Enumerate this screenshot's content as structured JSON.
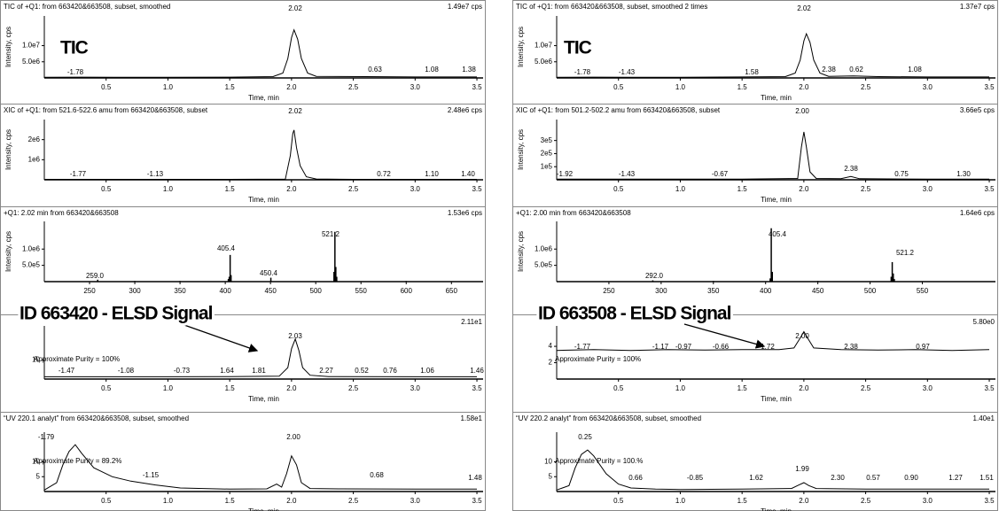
{
  "chart_data": [
    {
      "type": "line",
      "title": "TIC of +Q1: from 663420&663508, subset, smoothed",
      "max_label": "1.49e7 cps",
      "ylabel": "Intensity, cps",
      "xlabel": "Time, min",
      "callout": "TIC",
      "color": "#000000",
      "annotations": [
        "2.02",
        "-1.78",
        "0.63",
        "1.08",
        "1.38"
      ],
      "x": [
        0,
        0.3,
        0.6,
        1,
        1.5,
        1.85,
        1.93,
        1.97,
        2.0,
        2.02,
        2.05,
        2.08,
        2.13,
        2.2,
        2.6,
        3,
        3.5
      ],
      "values": [
        200000,
        250000,
        200000,
        200000,
        250000,
        400000,
        1500000,
        6000000,
        12500000,
        14900000,
        12000000,
        6000000,
        1500000,
        500000,
        400000,
        300000,
        300000
      ],
      "xlim": [
        0,
        3.55
      ],
      "ylim": [
        0,
        19200000
      ],
      "xticks": [
        0.5,
        {
          "value": 1,
          "label": "1.0"
        },
        1.5,
        {
          "value": 2,
          "label": "2.0"
        },
        2.5,
        {
          "value": 3,
          "label": "3.0"
        },
        3.5
      ],
      "yticks": [
        {
          "value": 5000000,
          "label": "5.0e6"
        },
        {
          "value": 10000000,
          "label": "1.0e7"
        }
      ]
    },
    {
      "type": "line",
      "title": "XIC of +Q1: from 521.6-522.6 amu from 663420&663508, subset",
      "max_label": "2.48e6 cps",
      "ylabel": "Intensity, cps",
      "xlabel": "Time, min",
      "color": "#000000",
      "annotations": [
        "2.02",
        "-1.77",
        "-1.13",
        "0.72",
        "1.10",
        "1.40"
      ],
      "x": [
        0,
        0.5,
        1,
        1.5,
        1.95,
        1.99,
        2.01,
        2.02,
        2.04,
        2.07,
        2.12,
        2.2,
        2.5,
        3,
        3.5
      ],
      "values": [
        20000,
        20000,
        20000,
        20000,
        30000,
        1200000,
        2300000,
        2480000,
        1600000,
        700000,
        150000,
        40000,
        20000,
        20000,
        20000
      ],
      "xlim": [
        0,
        3.55
      ],
      "ylim": [
        0,
        3000000
      ],
      "xticks": [
        0.5,
        {
          "value": 1,
          "label": "1.0"
        },
        1.5,
        {
          "value": 2,
          "label": "2.0"
        },
        2.5,
        {
          "value": 3,
          "label": "3.0"
        },
        3.5
      ],
      "yticks": [
        {
          "value": 1000000,
          "label": "1e6"
        },
        {
          "value": 2000000,
          "label": "2e6"
        }
      ]
    },
    {
      "type": "bar",
      "title": "+Q1: 2.02 min from 663420&663508",
      "max_label": "1.53e6 cps",
      "ylabel": "Intensity, cps",
      "color": "#000000",
      "annotations": [
        "405.4",
        "521.2",
        "259.0",
        "450.4"
      ],
      "x": [
        259,
        300,
        350,
        403.4,
        404.4,
        405.4,
        406.4,
        450.4,
        520.2,
        521.2,
        522.2,
        523.2,
        600
      ],
      "values": [
        60000,
        20000,
        20000,
        80000,
        150000,
        820000,
        200000,
        120000,
        300000,
        1530000,
        450000,
        150000,
        20000
      ],
      "xlim": [
        200,
        685
      ],
      "ylim": [
        0,
        1850000
      ],
      "xticks": [
        250,
        300,
        350,
        400,
        450,
        500,
        550,
        600,
        650
      ],
      "yticks": [
        {
          "value": 500000,
          "label": "5.0e5"
        },
        {
          "value": 1000000,
          "label": "1.0e6"
        }
      ]
    },
    {
      "type": "line",
      "max_label": "2.11e1",
      "xlabel": "Time, min",
      "callout": "ID 663420 - ELSD Signal",
      "note": "Approximate Purity = 100%",
      "color": "#000000",
      "annotations": [
        "2.03",
        "-1.47",
        "-1.08",
        "-0.73",
        "1.64",
        "1.81",
        "2.27",
        "0.52",
        "0.76",
        "1.06",
        "1.46"
      ],
      "x": [
        0,
        0.5,
        1,
        1.5,
        1.9,
        1.97,
        2.0,
        2.03,
        2.06,
        2.09,
        2.15,
        2.3,
        3,
        3.5
      ],
      "values": [
        1.2,
        1.2,
        1.2,
        1.3,
        1.5,
        6,
        16,
        21.1,
        15,
        6,
        2,
        1.3,
        1.2,
        1.2
      ],
      "xlim": [
        0,
        3.55
      ],
      "ylim": [
        0,
        28
      ],
      "xticks": [
        0.5,
        {
          "value": 1,
          "label": "1.0"
        },
        1.5,
        {
          "value": 2,
          "label": "2.0"
        },
        2.5,
        {
          "value": 3,
          "label": "3.0"
        },
        3.5
      ],
      "yticks": [
        10
      ]
    },
    {
      "type": "line",
      "title": "“UV 220.1 analyt” from 663420&663508, subset, smoothed",
      "max_label": "1.58e1",
      "xlabel": "Time, min",
      "note": "Approximate Purity = 89.2%",
      "color": "#000000",
      "annotations": [
        "-1.79",
        "-1.15",
        "2.00",
        "0.68",
        "1.48"
      ],
      "x": [
        0,
        0.1,
        0.15,
        0.2,
        0.25,
        0.3,
        0.4,
        0.55,
        0.7,
        0.9,
        1.1,
        1.5,
        1.8,
        1.88,
        1.92,
        1.96,
        2.0,
        2.04,
        2.08,
        2.15,
        2.4,
        3,
        3.5
      ],
      "values": [
        0.5,
        3,
        9,
        13.5,
        15.8,
        13,
        8,
        5,
        3.5,
        2.2,
        1.2,
        0.8,
        0.9,
        2.5,
        1.5,
        6,
        12,
        9,
        3,
        1,
        0.9,
        0.8,
        0.8
      ],
      "xlim": [
        0,
        3.55
      ],
      "ylim": [
        0,
        20
      ],
      "xticks": [
        0.5,
        {
          "value": 1,
          "label": "1.0"
        },
        1.5,
        {
          "value": 2,
          "label": "2.0"
        },
        2.5,
        {
          "value": 3,
          "label": "3.0"
        },
        3.5
      ],
      "yticks": [
        5,
        10
      ]
    },
    {
      "type": "line",
      "title": "TIC of +Q1: from 663420&663508, subset, smoothed 2 times",
      "max_label": "1.37e7 cps",
      "ylabel": "Intensity, cps",
      "xlabel": "Time, min",
      "callout": "TIC",
      "color": "#000000",
      "annotations": [
        "2.02",
        "-1.78",
        "-1.43",
        "1.58",
        "2.38",
        "0.62",
        "1.08"
      ],
      "x": [
        0,
        0.3,
        0.6,
        1,
        1.5,
        1.85,
        1.93,
        1.97,
        2.0,
        2.02,
        2.05,
        2.08,
        2.13,
        2.2,
        2.4,
        2.6,
        3,
        3.5
      ],
      "values": [
        200000,
        250000,
        200000,
        200000,
        300000,
        400000,
        1500000,
        5500000,
        11500000,
        13700000,
        11000000,
        5500000,
        1500000,
        500000,
        600000,
        400000,
        300000,
        300000
      ],
      "xlim": [
        0,
        3.55
      ],
      "ylim": [
        0,
        19200000
      ],
      "xticks": [
        0.5,
        {
          "value": 1,
          "label": "1.0"
        },
        1.5,
        {
          "value": 2,
          "label": "2.0"
        },
        2.5,
        {
          "value": 3,
          "label": "3.0"
        },
        3.5
      ],
      "yticks": [
        {
          "value": 5000000,
          "label": "5.0e6"
        },
        {
          "value": 10000000,
          "label": "1.0e7"
        }
      ]
    },
    {
      "type": "line",
      "title": "XIC of +Q1: from 501.2-502.2 amu from 663420&663508, subset",
      "max_label": "3.66e5 cps",
      "ylabel": "Intensity, cps",
      "xlabel": "Time, min",
      "color": "#000000",
      "annotations": [
        "2.00",
        "-1.92",
        "-1.43",
        "-0.67",
        "2.38",
        "0.75",
        "1.30"
      ],
      "x": [
        0,
        0.5,
        1,
        1.5,
        1.95,
        1.98,
        2.0,
        2.02,
        2.05,
        2.1,
        2.3,
        2.38,
        2.45,
        3,
        3.5
      ],
      "values": [
        5000,
        5000,
        5000,
        5000,
        10000,
        250000,
        366000,
        250000,
        60000,
        10000,
        8000,
        25000,
        8000,
        5000,
        5000
      ],
      "xlim": [
        0,
        3.55
      ],
      "ylim": [
        0,
        460000
      ],
      "xticks": [
        0.5,
        {
          "value": 1,
          "label": "1.0"
        },
        1.5,
        {
          "value": 2,
          "label": "2.0"
        },
        2.5,
        {
          "value": 3,
          "label": "3.0"
        },
        3.5
      ],
      "yticks": [
        {
          "value": 100000,
          "label": "1e5"
        },
        {
          "value": 200000,
          "label": "2e5"
        },
        {
          "value": 300000,
          "label": "3e5"
        }
      ]
    },
    {
      "type": "bar",
      "title": "+Q1: 2.00 min from 663420&663508",
      "max_label": "1.64e6 cps",
      "ylabel": "Intensity, cps",
      "color": "#000000",
      "annotations": [
        "405.4",
        "521.2",
        "292.0"
      ],
      "x": [
        292,
        350,
        404.4,
        405.4,
        406.4,
        450,
        520.2,
        521.2,
        522.2,
        523.2
      ],
      "values": [
        40000,
        20000,
        100000,
        1640000,
        300000,
        20000,
        150000,
        600000,
        250000,
        80000
      ],
      "xlim": [
        200,
        620
      ],
      "ylim": [
        0,
        1850000
      ],
      "xticks": [
        250,
        300,
        350,
        400,
        450,
        500,
        550
      ],
      "yticks": [
        {
          "value": 500000,
          "label": "5.0e5"
        },
        {
          "value": 1000000,
          "label": "1.0e6"
        }
      ]
    },
    {
      "type": "line",
      "max_label": "5.80e0",
      "xlabel": "Time, min",
      "callout": "ID 663508 - ELSD Signal",
      "note": "Approximate Purity = 100%",
      "color": "#000000",
      "annotations": [
        "-1.77",
        "-1.17",
        "-0.97",
        "-0.66",
        "1.72",
        "2.00",
        "2.38",
        "0.97"
      ],
      "x": [
        0,
        0.3,
        0.6,
        0.9,
        1.2,
        1.5,
        1.8,
        1.92,
        1.97,
        2.0,
        2.03,
        2.08,
        2.3,
        2.6,
        2.9,
        3.2,
        3.5
      ],
      "values": [
        3.5,
        3.6,
        3.5,
        3.6,
        3.55,
        3.6,
        3.6,
        3.8,
        5,
        5.8,
        5,
        3.8,
        3.6,
        3.55,
        3.6,
        3.5,
        3.6
      ],
      "xlim": [
        0,
        3.55
      ],
      "ylim": [
        0,
        6.5
      ],
      "xticks": [
        0.5,
        {
          "value": 1,
          "label": "1.0"
        },
        1.5,
        {
          "value": 2,
          "label": "2.0"
        },
        2.5,
        {
          "value": 3,
          "label": "3.0"
        },
        3.5
      ],
      "yticks": [
        2,
        4
      ]
    },
    {
      "type": "line",
      "title": "“UV 220.2 analyt” from 663420&663508, subset, smoothed",
      "max_label": "1.40e1",
      "xlabel": "Time, min",
      "note": "Approximate Purity = 100.%",
      "color": "#000000",
      "annotations": [
        "0.25",
        "0.66",
        "-0.85",
        "1.62",
        "1.99",
        "2.30",
        "0.57",
        "0.90",
        "1.27",
        "1.51"
      ],
      "x": [
        0,
        0.1,
        0.15,
        0.2,
        0.25,
        0.3,
        0.4,
        0.5,
        0.6,
        0.8,
        1,
        1.5,
        1.9,
        1.96,
        2.0,
        2.04,
        2.1,
        2.5,
        3,
        3.5
      ],
      "values": [
        0.5,
        2,
        8,
        12.5,
        14,
        12,
        6,
        2.5,
        1.2,
        0.8,
        0.7,
        0.8,
        1,
        2.2,
        3,
        2,
        1,
        0.8,
        0.8,
        0.8
      ],
      "xlim": [
        0,
        3.55
      ],
      "ylim": [
        0,
        20
      ],
      "xticks": [
        0.5,
        {
          "value": 1,
          "label": "1.0"
        },
        1.5,
        {
          "value": 2,
          "label": "2.0"
        },
        2.5,
        {
          "value": 3,
          "label": "3.0"
        },
        3.5
      ],
      "yticks": [
        5,
        10
      ]
    }
  ]
}
